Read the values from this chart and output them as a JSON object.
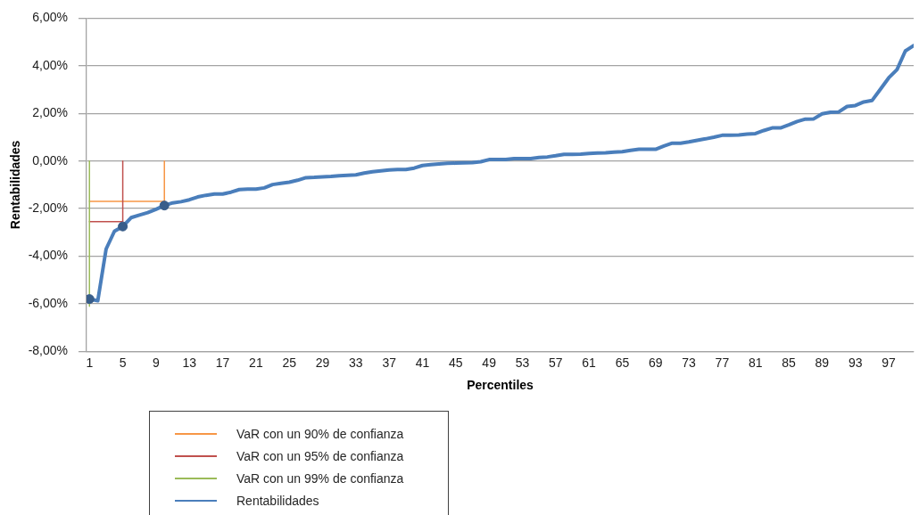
{
  "chart_data": {
    "type": "line",
    "xlabel": "Percentiles",
    "ylabel": "Rentabilidades",
    "x": [
      1,
      2,
      3,
      4,
      5,
      6,
      7,
      8,
      9,
      10,
      11,
      12,
      13,
      14,
      15,
      16,
      17,
      18,
      19,
      20,
      21,
      22,
      23,
      24,
      25,
      26,
      27,
      28,
      29,
      30,
      31,
      32,
      33,
      34,
      35,
      36,
      37,
      38,
      39,
      40,
      41,
      42,
      43,
      44,
      45,
      46,
      47,
      48,
      49,
      50,
      51,
      52,
      53,
      54,
      55,
      56,
      57,
      58,
      59,
      60,
      61,
      62,
      63,
      64,
      65,
      66,
      67,
      68,
      69,
      70,
      71,
      72,
      73,
      74,
      75,
      76,
      77,
      78,
      79,
      80,
      81,
      82,
      83,
      84,
      85,
      86,
      87,
      88,
      89,
      90,
      91,
      92,
      93,
      94,
      95,
      96,
      97,
      98,
      99,
      100
    ],
    "series": [
      {
        "name": "VaR con un 90% de confianza",
        "color": "#f79646",
        "x": [
          1,
          10,
          10
        ],
        "values": [
          -1.7,
          -1.7,
          0
        ]
      },
      {
        "name": "VaR con un 95% de confianza",
        "color": "#c0504d",
        "x": [
          1,
          5,
          5
        ],
        "values": [
          -2.55,
          -2.55,
          0
        ]
      },
      {
        "name": "VaR con un 99% de confianza",
        "color": "#9bbb59",
        "x": [
          1,
          1
        ],
        "values": [
          0,
          -6.1
        ]
      },
      {
        "name": "Rentabilidades",
        "color": "#4a7ebb",
        "values": [
          -5.8,
          -5.87,
          -3.7,
          -2.95,
          -2.75,
          -2.38,
          -2.27,
          -2.17,
          -2.03,
          -1.87,
          -1.76,
          -1.71,
          -1.63,
          -1.51,
          -1.44,
          -1.39,
          -1.39,
          -1.31,
          -1.2,
          -1.18,
          -1.18,
          -1.13,
          -0.99,
          -0.94,
          -0.89,
          -0.81,
          -0.7,
          -0.69,
          -0.67,
          -0.65,
          -0.62,
          -0.6,
          -0.58,
          -0.51,
          -0.45,
          -0.41,
          -0.38,
          -0.36,
          -0.36,
          -0.3,
          -0.19,
          -0.15,
          -0.12,
          -0.1,
          -0.09,
          -0.08,
          -0.07,
          -0.03,
          0.06,
          0.06,
          0.06,
          0.1,
          0.1,
          0.1,
          0.15,
          0.17,
          0.22,
          0.28,
          0.28,
          0.29,
          0.32,
          0.33,
          0.34,
          0.37,
          0.39,
          0.45,
          0.49,
          0.49,
          0.49,
          0.63,
          0.75,
          0.75,
          0.8,
          0.87,
          0.93,
          1.0,
          1.08,
          1.08,
          1.09,
          1.13,
          1.15,
          1.28,
          1.39,
          1.39,
          1.52,
          1.66,
          1.76,
          1.77,
          1.98,
          2.05,
          2.06,
          2.29,
          2.33,
          2.48,
          2.54,
          3.01,
          3.49,
          3.84,
          4.62,
          4.85
        ]
      },
      {
        "type": "scatter",
        "color": "#385d8a",
        "marker": "circle",
        "x": [
          1,
          5,
          10
        ],
        "values": [
          -5.8,
          -2.75,
          -1.87
        ]
      }
    ],
    "xlim": [
      0.65,
      100
    ],
    "xticks": [
      1,
      5,
      9,
      13,
      17,
      21,
      25,
      29,
      33,
      37,
      41,
      45,
      49,
      53,
      57,
      61,
      65,
      69,
      73,
      77,
      81,
      85,
      89,
      93,
      97
    ],
    "ylim": [
      -8,
      6
    ],
    "yticks": [
      {
        "value": -8,
        "label": "-8,00%"
      },
      {
        "value": -6,
        "label": "-6,00%"
      },
      {
        "value": -4,
        "label": "-4,00%"
      },
      {
        "value": -2,
        "label": "-2,00%"
      },
      {
        "value": 0,
        "label": "0,00%"
      },
      {
        "value": 2,
        "label": "2,00%"
      },
      {
        "value": 4,
        "label": "4,00%"
      },
      {
        "value": 6,
        "label": "6,00%"
      }
    ],
    "grid": "y",
    "legend": "bottom"
  }
}
